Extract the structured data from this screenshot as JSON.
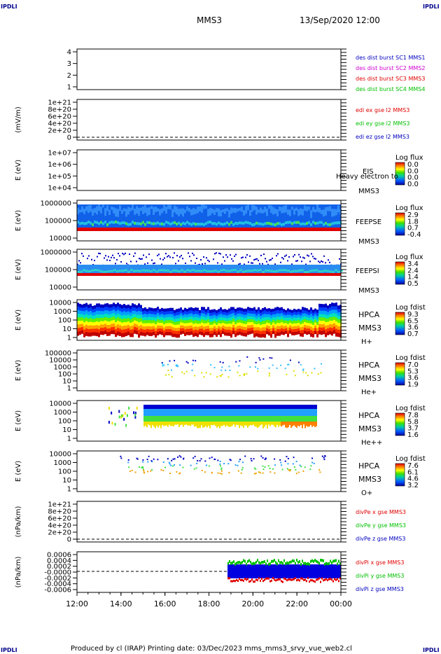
{
  "corner_label": "IPDLI",
  "header": {
    "instrument": "MMS3",
    "datetime": "13/Sep/2020 12:00"
  },
  "footer": {
    "text": "Produced by cl (IRAP)   Printing date: 03/Dec/2023   mms_mms3_srvy_vue_web2.cl"
  },
  "colors": {
    "red": "#e00000",
    "green": "#00c000",
    "blue": "#0000c0",
    "magenta": "#d000d0"
  },
  "chart_data": {
    "type": "heatmap",
    "x_ticks": [
      "12:00",
      "14:00",
      "16:00",
      "18:00",
      "20:00",
      "22:00",
      "00:00"
    ],
    "panels": [
      {
        "id": "sc",
        "ylabel": "",
        "yticks": [
          "4",
          "3",
          "2",
          "1"
        ],
        "legend": [
          {
            "text": "des dist burst SC1 MMS1",
            "color": "#0000c0"
          },
          {
            "text": "des dist burst SC2 MMS2",
            "color": "#d000d0"
          },
          {
            "text": "des dist burst SC3 MMS3",
            "color": "#e00000"
          },
          {
            "text": "des dist burst SC4 MMS4",
            "color": "#00c000"
          }
        ]
      },
      {
        "id": "edi",
        "ylabel": "(mV/m)",
        "yticks": [
          "1e+21",
          "8e+20",
          "6e+20",
          "4e+20",
          "2e+20",
          "0"
        ],
        "legend": [
          {
            "text": "edi ex gse l2 MMS3",
            "color": "#e00000"
          },
          {
            "text": "edi ey gse l2 MMS3",
            "color": "#00c000"
          },
          {
            "text": "edi ez gse l2 MMS3",
            "color": "#0000c0"
          }
        ]
      },
      {
        "id": "eis",
        "ylabel": "E (eV)",
        "yticks": [
          "1e+07",
          "1e+06",
          "1e+05",
          "1e+04"
        ],
        "labels": [
          "EIS",
          "Heavy electron to",
          "MMS3"
        ],
        "cbar": {
          "title": "Log flux",
          "ticks": [
            "0.0",
            "0.0",
            "0.0",
            "0.0"
          ]
        }
      },
      {
        "id": "feepse",
        "ylabel": "E (eV)",
        "yticks": [
          "1000000",
          "100000",
          "10000"
        ],
        "labels": [
          "FEEPSE",
          "MMS3"
        ],
        "cbar": {
          "title": "Log flux",
          "ticks": [
            "2.9",
            "1.8",
            "0.7",
            "-0.4"
          ]
        }
      },
      {
        "id": "feepsi",
        "ylabel": "E (eV)",
        "yticks": [
          "1000000",
          "100000",
          "10000"
        ],
        "labels": [
          "FEEPSI",
          "MMS3"
        ],
        "cbar": {
          "title": "Log flux",
          "ticks": [
            "3.4",
            "2.4",
            "1.4",
            "0.5"
          ]
        }
      },
      {
        "id": "hpca_h",
        "ylabel": "E (eV)",
        "yticks": [
          "10000",
          "1000",
          "100",
          "10",
          "1"
        ],
        "labels": [
          "HPCA",
          "MMS3",
          "H+"
        ],
        "cbar": {
          "title": "Log fdist",
          "ticks": [
            "9.3",
            "6.5",
            "3.6",
            "0.7"
          ]
        }
      },
      {
        "id": "hpca_he",
        "ylabel": "E (eV)",
        "yticks": [
          "100000",
          "10000",
          "1000",
          "100",
          "10",
          "1"
        ],
        "labels": [
          "HPCA",
          "MMS3",
          "He+"
        ],
        "cbar": {
          "title": "Log fdist",
          "ticks": [
            "7.0",
            "5.3",
            "3.6",
            "1.9"
          ]
        }
      },
      {
        "id": "hpca_hepp",
        "ylabel": "E (eV)",
        "yticks": [
          "10000",
          "1000",
          "100",
          "10",
          "1"
        ],
        "labels": [
          "HPCA",
          "MMS3",
          "He++"
        ],
        "cbar": {
          "title": "Log fdist",
          "ticks": [
            "7.8",
            "5.8",
            "3.7",
            "1.6"
          ]
        }
      },
      {
        "id": "hpca_o",
        "ylabel": "E (eV)",
        "yticks": [
          "10000",
          "1000",
          "100",
          "10",
          "1"
        ],
        "labels": [
          "HPCA",
          "MMS3",
          "O+"
        ],
        "cbar": {
          "title": "Log fdist",
          "ticks": [
            "7.6",
            "6.1",
            "4.6",
            "3.2"
          ]
        }
      },
      {
        "id": "divpe",
        "ylabel": "(nPa/km)",
        "yticks": [
          "1e+21",
          "8e+20",
          "6e+20",
          "4e+20",
          "2e+20",
          "0"
        ],
        "legend": [
          {
            "text": "divPe x gse MMS3",
            "color": "#e00000"
          },
          {
            "text": "divPe y gse MMS3",
            "color": "#00c000"
          },
          {
            "text": "divPe z gse MMS3",
            "color": "#0000c0"
          }
        ]
      },
      {
        "id": "divpi",
        "ylabel": "(nPa/km)",
        "yticks": [
          "0.0006",
          "0.0004",
          "0.0002",
          "-0.0000",
          "-0.0002",
          "-0.0004",
          "-0.0006"
        ],
        "legend": [
          {
            "text": "divPi x gse MMS3",
            "color": "#e00000"
          },
          {
            "text": "divPi y gse MMS3",
            "color": "#00c000"
          },
          {
            "text": "divPi z gse MMS3",
            "color": "#0000c0"
          }
        ]
      }
    ]
  }
}
